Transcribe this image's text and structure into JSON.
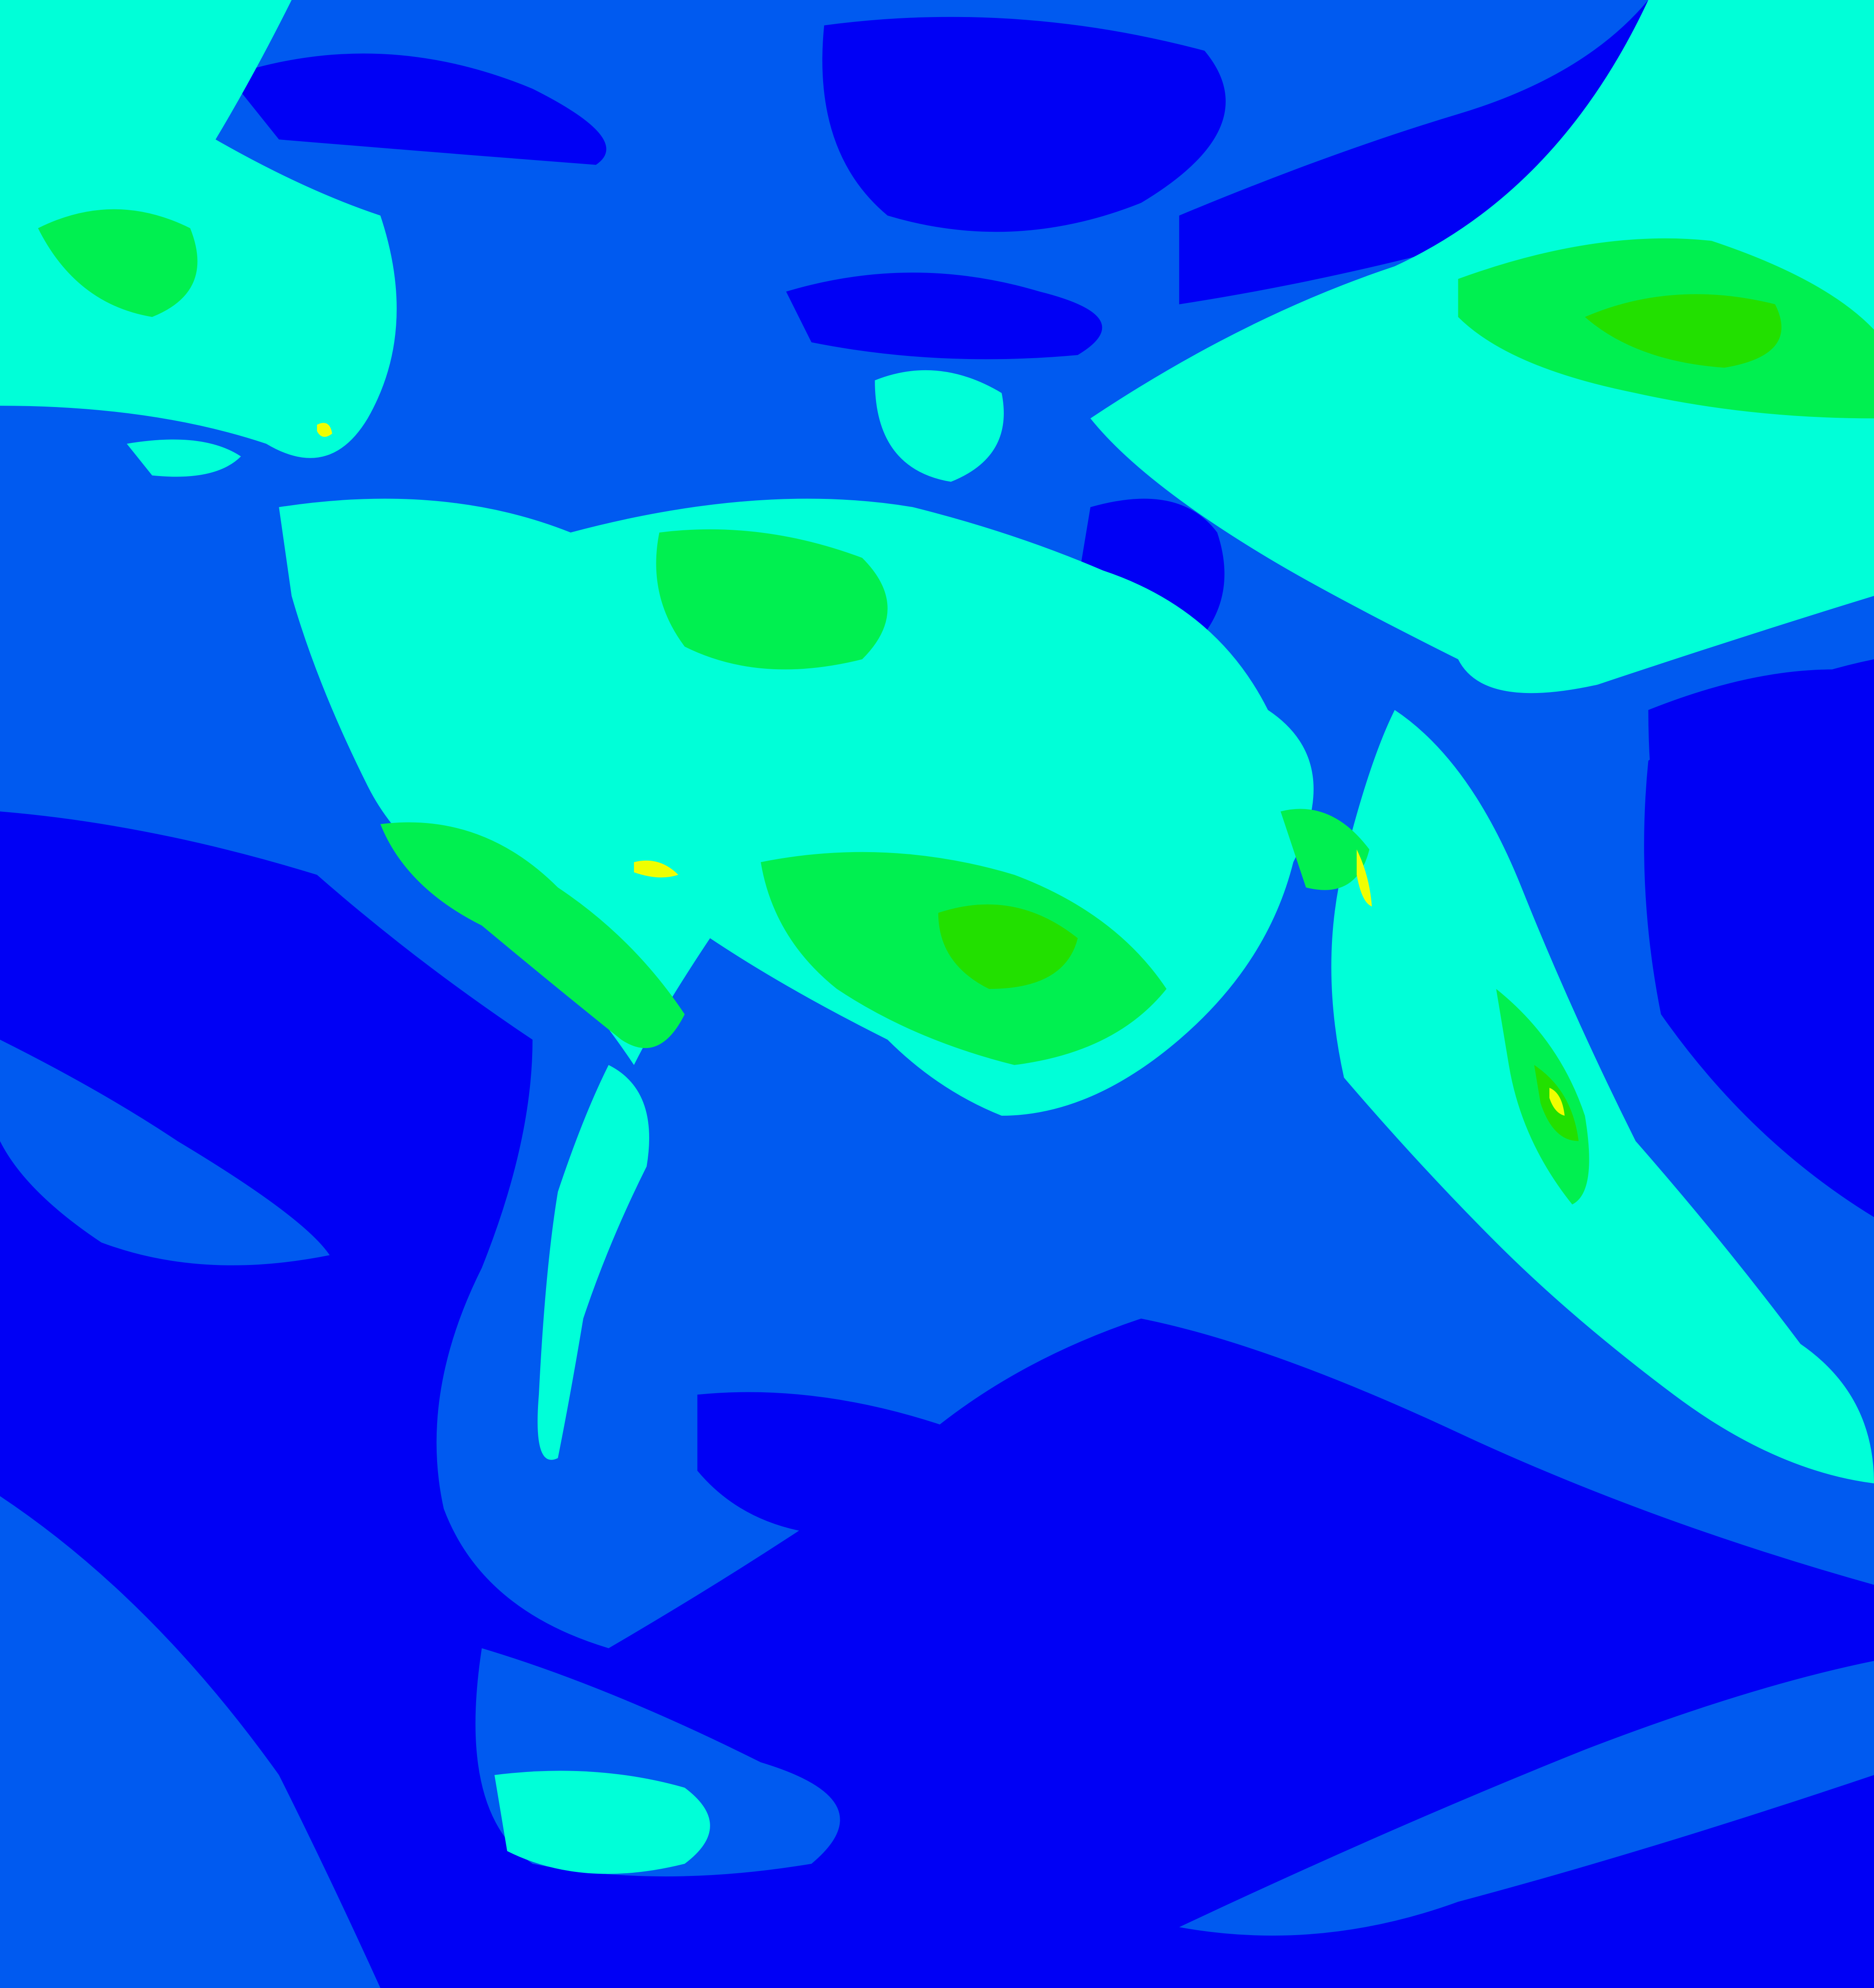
{
  "image": {
    "kind": "false-color satellite imagery",
    "palette": {
      "deep": "#0000f5",
      "low": "#005af0",
      "mid": "#00ffd8",
      "high": "#00f050",
      "peak": "#22e000",
      "extreme": "#f0ff00"
    }
  }
}
